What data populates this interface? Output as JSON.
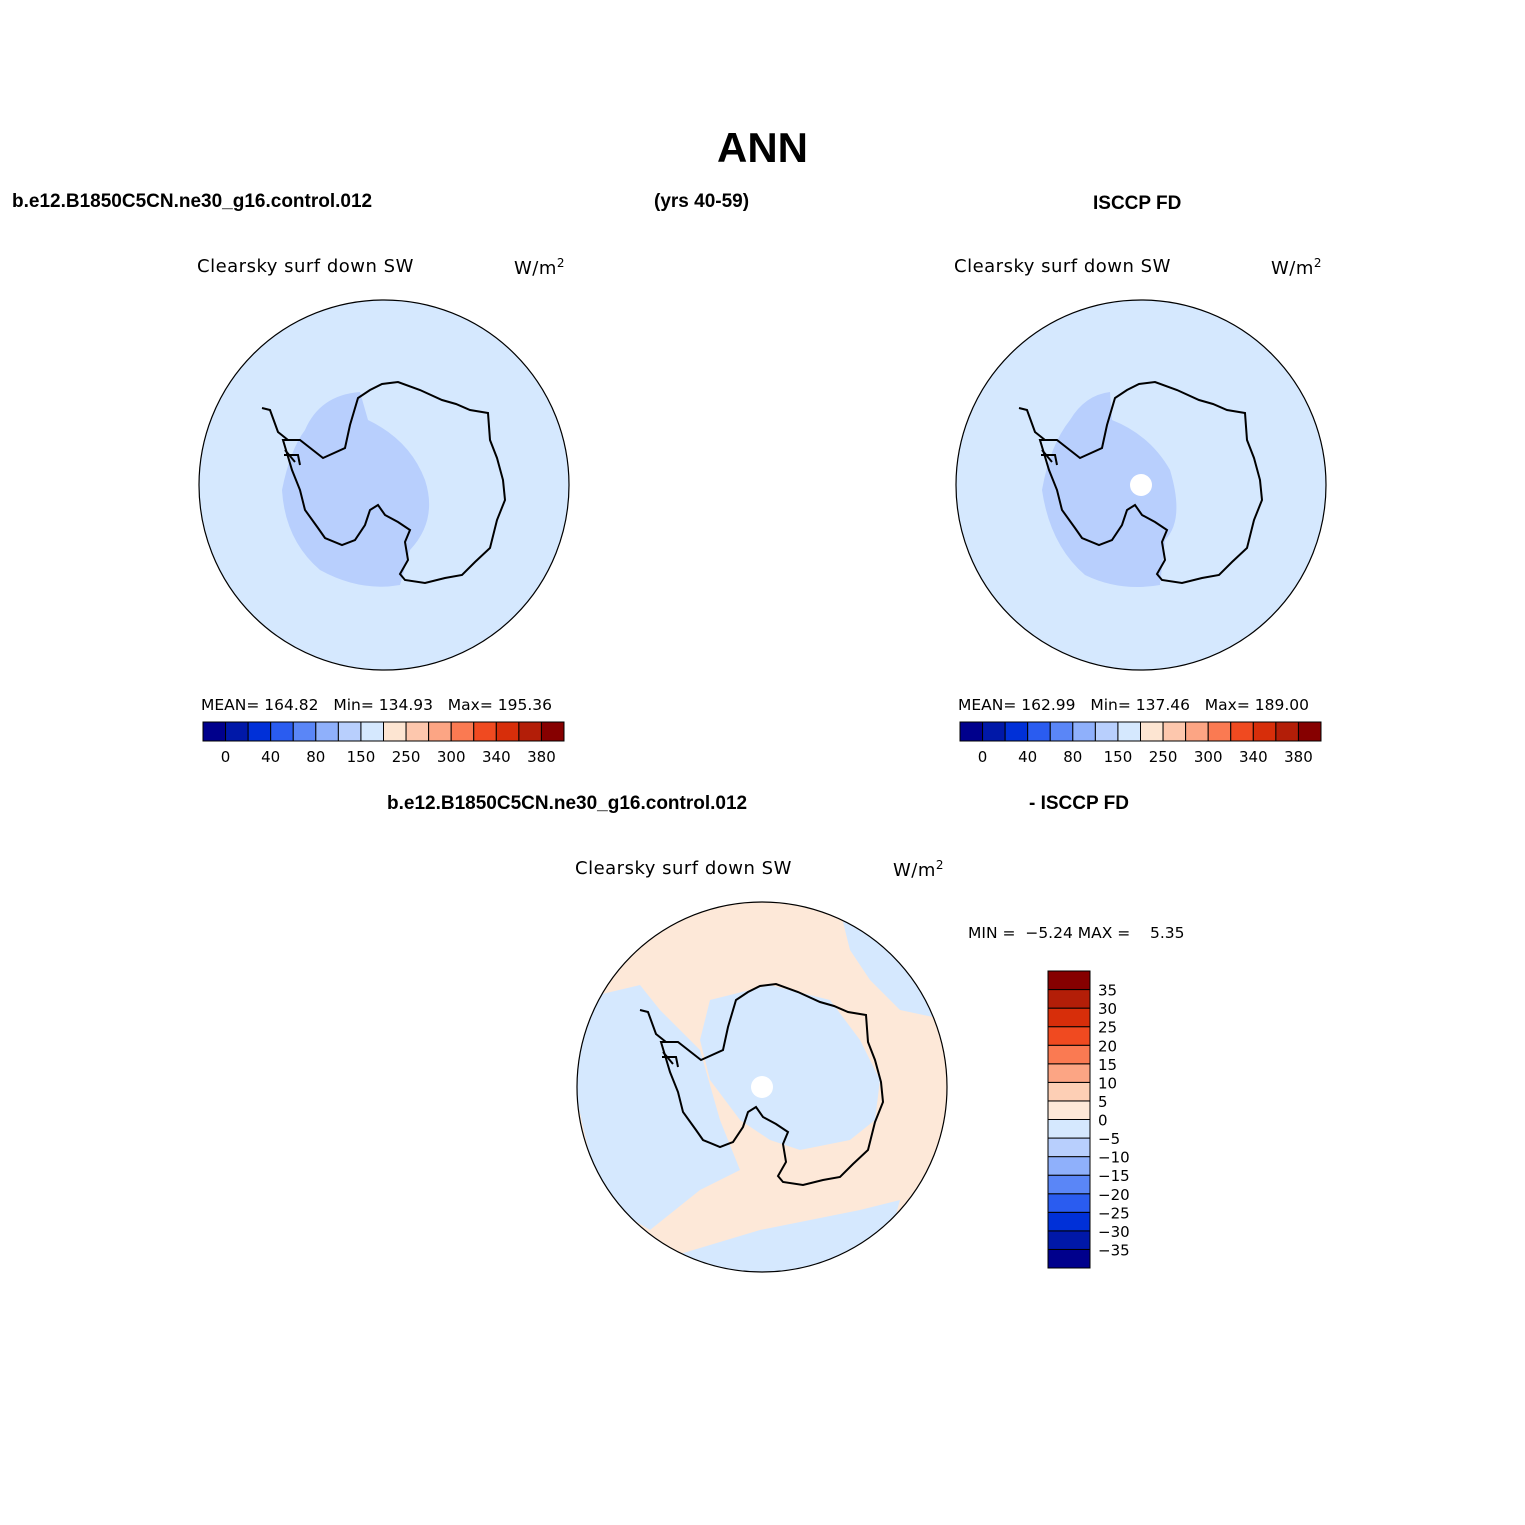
{
  "header": {
    "title": "ANN",
    "case_name": "b.e12.B1850C5CN.ne30_g16.control.012",
    "years": "(yrs 40-59)",
    "obs_name": "ISCCP FD"
  },
  "diff_header": {
    "case_name": "b.e12.B1850C5CN.ne30_g16.control.012",
    "obs_name": "- ISCCP FD"
  },
  "panels": {
    "model": {
      "title": "Clearsky surf down SW",
      "units_base": "W/m",
      "units_exp": "2",
      "stats": {
        "mean_label": "MEAN=",
        "mean": "164.82",
        "min_label": "Min=",
        "min": "134.93",
        "max_label": "Max=",
        "max": "195.36"
      }
    },
    "obs": {
      "title": "Clearsky surf down SW",
      "units_base": "W/m",
      "units_exp": "2",
      "stats": {
        "mean_label": "MEAN=",
        "mean": "162.99",
        "min_label": "Min=",
        "min": "137.46",
        "max_label": "Max=",
        "max": "189.00"
      }
    },
    "diff": {
      "title": "Clearsky surf down SW",
      "units_base": "W/m",
      "units_exp": "2",
      "stats": {
        "min_label": "MIN =",
        "min": "−5.24",
        "max_label": "MAX =",
        "max": "5.35"
      }
    }
  },
  "colorbar_abs": {
    "colors": [
      "#00008c",
      "#0018a8",
      "#0030d8",
      "#2a5cf0",
      "#5a86f7",
      "#8fb0fb",
      "#b8cffd",
      "#d5e8fe",
      "#fde5d2",
      "#fdc7ad",
      "#fca584",
      "#fa7a52",
      "#f04a20",
      "#d72e0a",
      "#b31e08",
      "#860000"
    ],
    "labels": [
      "0",
      "40",
      "80",
      "150",
      "250",
      "300",
      "340",
      "380"
    ]
  },
  "colorbar_diff": {
    "colors": [
      "#00008c",
      "#0018a8",
      "#0030d8",
      "#2a5cf0",
      "#5a86f7",
      "#8fb0fb",
      "#b8cffd",
      "#d5e8fe",
      "#fde8d8",
      "#fdcfb5",
      "#fca584",
      "#fa7a52",
      "#f04a20",
      "#d72e0a",
      "#b31e08",
      "#860000"
    ],
    "labels": [
      "−35",
      "−30",
      "−25",
      "−20",
      "−15",
      "−10",
      "−5",
      "0",
      "5",
      "10",
      "15",
      "20",
      "25",
      "30",
      "35"
    ]
  },
  "map_colors": {
    "ocean_abs": "#d5e8fe",
    "inland_low": "#b8cffd",
    "ice_abs": "#eef5ff",
    "diff_neg": "#d5e8fe",
    "diff_pos": "#fde8d8",
    "missing": "#ffffff"
  }
}
